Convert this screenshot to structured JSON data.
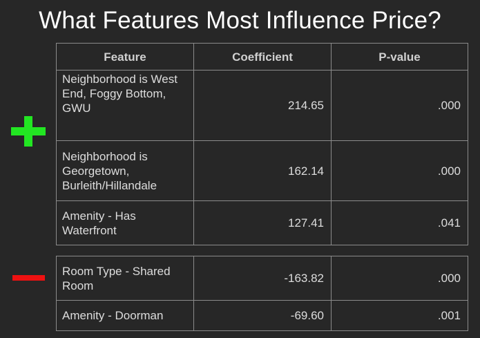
{
  "title": "What Features Most Influence Price?",
  "colors": {
    "background": "#272727",
    "plus": "#22e622",
    "minus": "#ee1111",
    "border": "#8c8c8c"
  },
  "icons": {
    "positive": "plus-icon",
    "negative": "minus-icon"
  },
  "headers": [
    "Feature",
    "Coefficient",
    "P-value"
  ],
  "positive_rows": [
    {
      "feature": "Neighborhood is West End, Foggy Bottom, GWU",
      "coefficient": "214.65",
      "p_value": ".000"
    },
    {
      "feature": "Neighborhood is Georgetown, Burleith/Hillandale",
      "coefficient": "162.14",
      "p_value": ".000"
    },
    {
      "feature": "Amenity - Has Waterfront",
      "coefficient": "127.41",
      "p_value": ".041"
    }
  ],
  "negative_rows": [
    {
      "feature": "Room Type - Shared Room",
      "coefficient": "-163.82",
      "p_value": ".000"
    },
    {
      "feature": "Amenity - Doorman",
      "coefficient": "-69.60",
      "p_value": ".001"
    }
  ]
}
